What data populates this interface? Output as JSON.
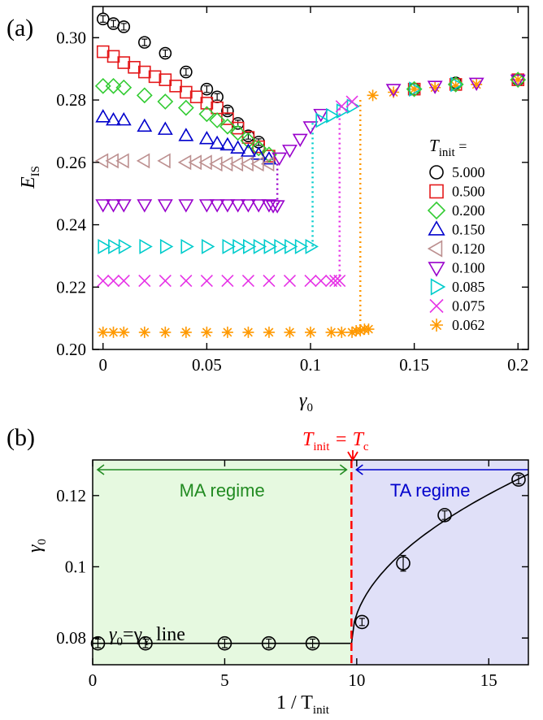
{
  "chart_data": [
    {
      "type": "scatter",
      "panel_label": "(a)",
      "xlabel": "γ",
      "xlabel_sub": "0",
      "ylabel": "E",
      "ylabel_sub": "IS",
      "xlim": [
        -0.005,
        0.205
      ],
      "ylim": [
        0.2,
        0.31
      ],
      "xticks": [
        0,
        0.05,
        0.1,
        0.15,
        0.2
      ],
      "xticklabels": [
        "0",
        "0.05",
        "0.1",
        "0.15",
        "0.2"
      ],
      "yticks": [
        0.2,
        0.22,
        0.24,
        0.26,
        0.28,
        0.3
      ],
      "yticklabels": [
        "0.20",
        "0.22",
        "0.24",
        "0.26",
        "0.28",
        "0.30"
      ],
      "legend_title": "T",
      "legend_title_sub": "init",
      "legend_title_suffix": " =",
      "legend_position": "right",
      "grid": false,
      "series": [
        {
          "name": "5.000",
          "marker": "circle",
          "color": "#000000",
          "x": [
            0,
            0.005,
            0.01,
            0.02,
            0.03,
            0.04,
            0.05,
            0.055,
            0.06,
            0.065,
            0.07,
            0.075
          ],
          "y": [
            0.306,
            0.3045,
            0.3035,
            0.2985,
            0.295,
            0.289,
            0.2835,
            0.281,
            0.2765,
            0.2725,
            0.2685,
            0.2665
          ]
        },
        {
          "name": "0.500",
          "marker": "square",
          "color": "#e41a1c",
          "x": [
            0,
            0.005,
            0.01,
            0.015,
            0.02,
            0.025,
            0.03,
            0.035,
            0.04,
            0.045,
            0.05,
            0.055,
            0.06,
            0.065,
            0.07,
            0.075,
            0.08
          ],
          "y": [
            0.2955,
            0.294,
            0.292,
            0.2905,
            0.289,
            0.2875,
            0.2865,
            0.2845,
            0.2825,
            0.281,
            0.279,
            0.2775,
            0.274,
            0.271,
            0.268,
            0.265,
            0.262
          ]
        },
        {
          "name": "0.200",
          "marker": "diamond",
          "color": "#33cc33",
          "x": [
            0,
            0.005,
            0.01,
            0.02,
            0.03,
            0.04,
            0.05,
            0.055,
            0.06,
            0.065,
            0.07,
            0.075,
            0.08
          ],
          "y": [
            0.2845,
            0.2845,
            0.284,
            0.2815,
            0.2795,
            0.2775,
            0.2755,
            0.2735,
            0.2715,
            0.2695,
            0.267,
            0.2645,
            0.2625
          ]
        },
        {
          "name": "0.150",
          "marker": "triangle-up",
          "color": "#0000cc",
          "x": [
            0,
            0.005,
            0.01,
            0.02,
            0.03,
            0.04,
            0.05,
            0.055,
            0.06,
            0.065,
            0.07,
            0.075,
            0.08
          ],
          "y": [
            0.2745,
            0.2735,
            0.2735,
            0.2715,
            0.2705,
            0.2685,
            0.2675,
            0.266,
            0.2655,
            0.2645,
            0.2635,
            0.2625,
            0.261
          ]
        },
        {
          "name": "0.120",
          "marker": "triangle-left",
          "color": "#bc8f8f",
          "x": [
            0,
            0.005,
            0.01,
            0.02,
            0.03,
            0.04,
            0.045,
            0.05,
            0.055,
            0.06,
            0.065,
            0.07,
            0.075,
            0.08
          ],
          "y": [
            0.2605,
            0.2605,
            0.2605,
            0.2605,
            0.2605,
            0.26,
            0.26,
            0.26,
            0.2595,
            0.2595,
            0.2595,
            0.2595,
            0.2595,
            0.2595
          ]
        },
        {
          "name": "0.100",
          "marker": "triangle-down",
          "color": "#9900cc",
          "x": [
            0,
            0.005,
            0.01,
            0.02,
            0.03,
            0.04,
            0.05,
            0.055,
            0.06,
            0.065,
            0.07,
            0.075,
            0.08,
            0.082,
            0.084,
            0.085,
            0.09,
            0.095,
            0.1,
            0.105
          ],
          "y": [
            0.2465,
            0.2465,
            0.2465,
            0.2465,
            0.2465,
            0.2465,
            0.2465,
            0.2465,
            0.2465,
            0.2465,
            0.2465,
            0.2465,
            0.2465,
            0.2462,
            0.2462,
            0.2615,
            0.264,
            0.2675,
            0.2715,
            0.2755
          ]
        },
        {
          "name": "0.085",
          "marker": "triangle-right",
          "color": "#00cccc",
          "x": [
            0,
            0.005,
            0.01,
            0.02,
            0.03,
            0.04,
            0.05,
            0.06,
            0.065,
            0.07,
            0.075,
            0.08,
            0.085,
            0.09,
            0.095,
            0.1,
            0.105,
            0.11,
            0.115,
            0.12
          ],
          "y": [
            0.233,
            0.233,
            0.233,
            0.233,
            0.233,
            0.233,
            0.233,
            0.233,
            0.233,
            0.233,
            0.233,
            0.233,
            0.233,
            0.233,
            0.233,
            0.233,
            0.2735,
            0.275,
            0.2765,
            0.278
          ]
        },
        {
          "name": "0.075",
          "marker": "x",
          "color": "#e633e6",
          "x": [
            0,
            0.005,
            0.01,
            0.02,
            0.03,
            0.04,
            0.05,
            0.06,
            0.07,
            0.08,
            0.09,
            0.1,
            0.105,
            0.11,
            0.112,
            0.114,
            0.115,
            0.12
          ],
          "y": [
            0.222,
            0.222,
            0.222,
            0.222,
            0.222,
            0.222,
            0.222,
            0.222,
            0.222,
            0.222,
            0.222,
            0.222,
            0.222,
            0.222,
            0.222,
            0.222,
            0.278,
            0.2795
          ]
        },
        {
          "name": "0.062",
          "marker": "star",
          "color": "#ff9900",
          "x": [
            0,
            0.005,
            0.01,
            0.02,
            0.03,
            0.04,
            0.05,
            0.06,
            0.07,
            0.08,
            0.09,
            0.1,
            0.11,
            0.115,
            0.12,
            0.122,
            0.124,
            0.126,
            0.128,
            0.13,
            0.14,
            0.15,
            0.16,
            0.17,
            0.18,
            0.2
          ],
          "y": [
            0.2055,
            0.2055,
            0.2055,
            0.2055,
            0.2055,
            0.2055,
            0.2055,
            0.2055,
            0.2055,
            0.2055,
            0.2055,
            0.2055,
            0.2055,
            0.2055,
            0.2055,
            0.206,
            0.206,
            0.2065,
            0.2065,
            0.2815,
            0.2825,
            0.2835,
            0.284,
            0.2845,
            0.285,
            0.2865
          ]
        }
      ],
      "extra_points": [
        {
          "marker": "circle",
          "color": "#000000",
          "x": 0.15,
          "y": 0.2835
        },
        {
          "marker": "circle",
          "color": "#000000",
          "x": 0.17,
          "y": 0.2855
        },
        {
          "marker": "circle",
          "color": "#000000",
          "x": 0.2,
          "y": 0.2865
        },
        {
          "marker": "square",
          "color": "#e41a1c",
          "x": 0.15,
          "y": 0.2835
        },
        {
          "marker": "square",
          "color": "#e41a1c",
          "x": 0.17,
          "y": 0.285
        },
        {
          "marker": "square",
          "color": "#e41a1c",
          "x": 0.2,
          "y": 0.2865
        },
        {
          "marker": "triangle-down",
          "color": "#9900cc",
          "x": 0.14,
          "y": 0.2835
        },
        {
          "marker": "triangle-down",
          "color": "#9900cc",
          "x": 0.16,
          "y": 0.2845
        },
        {
          "marker": "triangle-down",
          "color": "#9900cc",
          "x": 0.18,
          "y": 0.2855
        },
        {
          "marker": "triangle-down",
          "color": "#9900cc",
          "x": 0.2,
          "y": 0.2865
        },
        {
          "marker": "triangle-right",
          "color": "#00cccc",
          "x": 0.15,
          "y": 0.2835
        },
        {
          "marker": "triangle-right",
          "color": "#00cccc",
          "x": 0.17,
          "y": 0.285
        },
        {
          "marker": "diamond",
          "color": "#33cc33",
          "x": 0.15,
          "y": 0.2835
        },
        {
          "marker": "diamond",
          "color": "#33cc33",
          "x": 0.17,
          "y": 0.285
        },
        {
          "marker": "diamond",
          "color": "#33cc33",
          "x": 0.2,
          "y": 0.2865
        }
      ],
      "dotted_drops": [
        {
          "color": "#9900cc",
          "x": 0.084,
          "y_from": 0.2465,
          "y_to": 0.2605
        },
        {
          "color": "#00cccc",
          "x": 0.101,
          "y_from": 0.233,
          "y_to": 0.2735
        },
        {
          "color": "#e633e6",
          "x": 0.114,
          "y_from": 0.222,
          "y_to": 0.2775
        },
        {
          "color": "#ff9900",
          "x": 0.124,
          "y_from": 0.206,
          "y_to": 0.281
        }
      ]
    },
    {
      "type": "scatter",
      "panel_label": "(b)",
      "xlabel": "1 / T",
      "xlabel_sub": "init",
      "ylabel": "γ",
      "ylabel_sub": "0",
      "xlim": [
        0,
        16.5
      ],
      "ylim": [
        0.0725,
        0.13
      ],
      "xticks": [
        0,
        5,
        10,
        15
      ],
      "xticklabels": [
        "0",
        "5",
        "10",
        "15"
      ],
      "yticks": [
        0.08,
        0.1,
        0.12
      ],
      "yticklabels": [
        "0.08",
        "0.1",
        "0.12"
      ],
      "grid": false,
      "critical_x": 9.8,
      "critical_label": "T",
      "critical_label_sub1": "init",
      "critical_label_eq": " = T",
      "critical_label_sub2": "c",
      "regions": [
        {
          "name": "MA regime",
          "x_from": 0,
          "x_to": 9.8,
          "color": "#e6f9e0",
          "arrow_color": "#228b22"
        },
        {
          "name": "TA regime",
          "x_from": 9.8,
          "x_to": 16.5,
          "color": "#e0e0f8",
          "arrow_color": "#0000cc"
        }
      ],
      "line_label": "γ",
      "line_label_parts": [
        "γ",
        "0",
        "=γ",
        "Y",
        " line"
      ],
      "points": {
        "x": [
          0.2,
          2.0,
          5.0,
          6.67,
          8.33,
          10.2,
          11.76,
          13.33,
          16.13
        ],
        "y": [
          0.0785,
          0.0785,
          0.0785,
          0.0785,
          0.0785,
          0.0845,
          0.101,
          0.1145,
          0.1245
        ],
        "err": [
          0.0012,
          0.0012,
          0.0012,
          0.0012,
          0.0012,
          0.001,
          0.0022,
          0.0012,
          0.0012
        ]
      },
      "fit_flat_y": 0.0785
    }
  ]
}
